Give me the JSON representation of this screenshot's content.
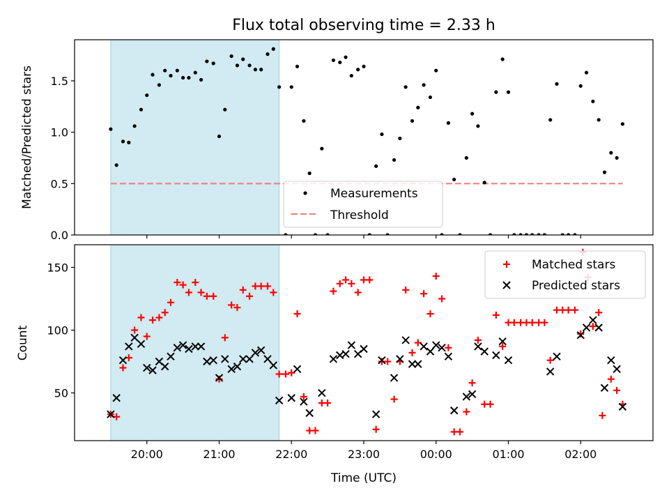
{
  "title": "Flux total observing time = 2.33 h",
  "shading": {
    "start_hours": 19.5,
    "end_hours": 21.83,
    "color": "#add8e6"
  },
  "chart_data": [
    {
      "type": "scatter",
      "title": "Flux total observing time = 2.33 h",
      "xlabel": "",
      "ylabel": "Matched/Predicted stars",
      "ylim": [
        0,
        1.9
      ],
      "yticks": [
        "0.0",
        "0.5",
        "1.0",
        "1.5"
      ],
      "ytick_values": [
        0,
        0.5,
        1.0,
        1.5
      ],
      "legend_position": "lower-center",
      "threshold": {
        "name": "Threshold",
        "y": 0.5,
        "x_range": [
          19.5,
          26.58
        ],
        "color": "#f08080"
      },
      "series": [
        {
          "name": "Measurements",
          "color": "#000000",
          "points": [
            [
              19.5,
              1.03
            ],
            [
              19.58,
              0.68
            ],
            [
              19.67,
              0.91
            ],
            [
              19.75,
              0.9
            ],
            [
              19.83,
              1.06
            ],
            [
              19.92,
              1.22
            ],
            [
              20.0,
              1.36
            ],
            [
              20.08,
              1.56
            ],
            [
              20.17,
              1.46
            ],
            [
              20.25,
              1.6
            ],
            [
              20.33,
              1.55
            ],
            [
              20.42,
              1.6
            ],
            [
              20.5,
              1.53
            ],
            [
              20.58,
              1.53
            ],
            [
              20.67,
              1.58
            ],
            [
              20.75,
              1.51
            ],
            [
              20.83,
              1.69
            ],
            [
              20.92,
              1.67
            ],
            [
              21.0,
              0.96
            ],
            [
              21.08,
              1.22
            ],
            [
              21.17,
              1.74
            ],
            [
              21.25,
              1.65
            ],
            [
              21.33,
              1.71
            ],
            [
              21.42,
              1.65
            ],
            [
              21.5,
              1.61
            ],
            [
              21.58,
              1.61
            ],
            [
              21.67,
              1.76
            ],
            [
              21.75,
              1.81
            ],
            [
              21.83,
              1.44
            ],
            [
              21.92,
              0.0
            ],
            [
              22.0,
              1.44
            ],
            [
              22.08,
              1.64
            ],
            [
              22.17,
              1.11
            ],
            [
              22.25,
              0.6
            ],
            [
              22.33,
              0.0
            ],
            [
              22.42,
              0.84
            ],
            [
              22.5,
              0.0
            ],
            [
              22.58,
              1.7
            ],
            [
              22.67,
              1.68
            ],
            [
              22.75,
              1.73
            ],
            [
              22.83,
              1.55
            ],
            [
              22.92,
              1.61
            ],
            [
              23.0,
              1.64
            ],
            [
              23.08,
              0.0
            ],
            [
              23.17,
              0.67
            ],
            [
              23.25,
              0.98
            ],
            [
              23.33,
              0.0
            ],
            [
              23.42,
              0.73
            ],
            [
              23.5,
              0.94
            ],
            [
              23.58,
              1.44
            ],
            [
              23.67,
              1.11
            ],
            [
              23.75,
              1.24
            ],
            [
              23.83,
              1.46
            ],
            [
              23.92,
              1.34
            ],
            [
              24.0,
              1.6
            ],
            [
              24.08,
              0.0
            ],
            [
              24.17,
              1.09
            ],
            [
              24.25,
              0.54
            ],
            [
              24.33,
              0.0
            ],
            [
              24.42,
              0.75
            ],
            [
              24.5,
              1.18
            ],
            [
              24.58,
              1.06
            ],
            [
              24.67,
              0.51
            ],
            [
              24.75,
              0.0
            ],
            [
              24.83,
              1.39
            ],
            [
              24.92,
              1.71
            ],
            [
              25.0,
              1.39
            ],
            [
              25.08,
              0.0
            ],
            [
              25.17,
              0.0
            ],
            [
              25.25,
              0.0
            ],
            [
              25.33,
              0.0
            ],
            [
              25.42,
              0.0
            ],
            [
              25.5,
              0.0
            ],
            [
              25.58,
              1.12
            ],
            [
              25.67,
              1.47
            ],
            [
              25.75,
              0.0
            ],
            [
              25.83,
              0.0
            ],
            [
              25.92,
              0.0
            ],
            [
              26.0,
              1.45
            ],
            [
              26.08,
              1.58
            ],
            [
              26.17,
              1.3
            ],
            [
              26.25,
              1.12
            ],
            [
              26.33,
              0.61
            ],
            [
              26.42,
              0.8
            ],
            [
              26.5,
              0.75
            ],
            [
              26.58,
              1.08
            ]
          ]
        }
      ]
    },
    {
      "type": "scatter",
      "xlabel": "Time (UTC)",
      "ylabel": "Count",
      "ylim": [
        12,
        168
      ],
      "yticks": [
        "50",
        "100",
        "150"
      ],
      "ytick_values": [
        50,
        100,
        150
      ],
      "xlim": [
        19.0,
        27.0
      ],
      "xticks": [
        "20:00",
        "21:00",
        "22:00",
        "23:00",
        "00:00",
        "01:00",
        "02:00"
      ],
      "xtick_values": [
        20,
        21,
        22,
        23,
        24,
        25,
        26
      ],
      "legend_position": "upper-right",
      "series": [
        {
          "name": "Matched stars",
          "marker": "plus",
          "color": "#ff0000",
          "points": [
            [
              19.5,
              33
            ],
            [
              19.58,
              31
            ],
            [
              19.67,
              70
            ],
            [
              19.75,
              78
            ],
            [
              19.83,
              100
            ],
            [
              19.92,
              110
            ],
            [
              20.0,
              95
            ],
            [
              20.08,
              108
            ],
            [
              20.17,
              110
            ],
            [
              20.25,
              114
            ],
            [
              20.33,
              122
            ],
            [
              20.42,
              138
            ],
            [
              20.5,
              136
            ],
            [
              20.58,
              130
            ],
            [
              20.67,
              138
            ],
            [
              20.75,
              130
            ],
            [
              20.83,
              127
            ],
            [
              20.92,
              127
            ],
            [
              21.0,
              61
            ],
            [
              21.08,
              94
            ],
            [
              21.17,
              120
            ],
            [
              21.25,
              118
            ],
            [
              21.33,
              132
            ],
            [
              21.42,
              127
            ],
            [
              21.5,
              135
            ],
            [
              21.58,
              135
            ],
            [
              21.67,
              135
            ],
            [
              21.75,
              130
            ],
            [
              21.83,
              65
            ],
            [
              21.92,
              65
            ],
            [
              22.0,
              66
            ],
            [
              22.08,
              113
            ],
            [
              22.17,
              47
            ],
            [
              22.25,
              20
            ],
            [
              22.33,
              20
            ],
            [
              22.42,
              42
            ],
            [
              22.5,
              42
            ],
            [
              22.58,
              131
            ],
            [
              22.67,
              137
            ],
            [
              22.75,
              140
            ],
            [
              22.83,
              137
            ],
            [
              22.92,
              130
            ],
            [
              23.0,
              140
            ],
            [
              23.08,
              140
            ],
            [
              23.17,
              21
            ],
            [
              23.25,
              75
            ],
            [
              23.33,
              75
            ],
            [
              23.42,
              45
            ],
            [
              23.5,
              75
            ],
            [
              23.58,
              132
            ],
            [
              23.67,
              82
            ],
            [
              23.75,
              90
            ],
            [
              23.83,
              129
            ],
            [
              23.92,
              113
            ],
            [
              24.0,
              143
            ],
            [
              24.08,
              125
            ],
            [
              24.17,
              86
            ],
            [
              24.25,
              19
            ],
            [
              24.33,
              19
            ],
            [
              24.42,
              35
            ],
            [
              24.5,
              58
            ],
            [
              24.58,
              92
            ],
            [
              24.67,
              41
            ],
            [
              24.75,
              41
            ],
            [
              24.83,
              112
            ],
            [
              24.92,
              87
            ],
            [
              25.0,
              106
            ],
            [
              25.08,
              106
            ],
            [
              25.17,
              106
            ],
            [
              25.25,
              106
            ],
            [
              25.33,
              106
            ],
            [
              25.42,
              106
            ],
            [
              25.5,
              106
            ],
            [
              25.58,
              76
            ],
            [
              25.67,
              116
            ],
            [
              25.75,
              116
            ],
            [
              25.83,
              116
            ],
            [
              25.92,
              116
            ],
            [
              26.0,
              97
            ],
            [
              26.03,
              162
            ],
            [
              26.1,
              142
            ],
            [
              26.17,
              103
            ],
            [
              26.25,
              114
            ],
            [
              26.3,
              32
            ],
            [
              26.42,
              61
            ],
            [
              26.5,
              52
            ],
            [
              26.58,
              41
            ]
          ]
        },
        {
          "name": "Predicted stars",
          "marker": "x",
          "color": "#000000",
          "points": [
            [
              19.5,
              33
            ],
            [
              19.58,
              46
            ],
            [
              19.67,
              76
            ],
            [
              19.75,
              87
            ],
            [
              19.83,
              94
            ],
            [
              19.92,
              89
            ],
            [
              20.0,
              70
            ],
            [
              20.08,
              68
            ],
            [
              20.17,
              75
            ],
            [
              20.25,
              71
            ],
            [
              20.33,
              79
            ],
            [
              20.42,
              86
            ],
            [
              20.5,
              88
            ],
            [
              20.58,
              85
            ],
            [
              20.67,
              87
            ],
            [
              20.75,
              87
            ],
            [
              20.83,
              75
            ],
            [
              20.92,
              76
            ],
            [
              21.0,
              62
            ],
            [
              21.08,
              77
            ],
            [
              21.17,
              69
            ],
            [
              21.25,
              71
            ],
            [
              21.33,
              77
            ],
            [
              21.42,
              77
            ],
            [
              21.5,
              82
            ],
            [
              21.58,
              84
            ],
            [
              21.67,
              77
            ],
            [
              21.75,
              72
            ],
            [
              21.83,
              44
            ],
            [
              22.0,
              46
            ],
            [
              22.08,
              69
            ],
            [
              22.17,
              43
            ],
            [
              22.25,
              34
            ],
            [
              22.42,
              50
            ],
            [
              22.58,
              77
            ],
            [
              22.67,
              80
            ],
            [
              22.75,
              81
            ],
            [
              22.83,
              88
            ],
            [
              22.92,
              81
            ],
            [
              23.0,
              85
            ],
            [
              23.17,
              33
            ],
            [
              23.25,
              76
            ],
            [
              23.42,
              62
            ],
            [
              23.5,
              77
            ],
            [
              23.58,
              92
            ],
            [
              23.67,
              73
            ],
            [
              23.75,
              73
            ],
            [
              23.83,
              87
            ],
            [
              23.92,
              83
            ],
            [
              24.0,
              88
            ],
            [
              24.08,
              86
            ],
            [
              24.17,
              79
            ],
            [
              24.25,
              36
            ],
            [
              24.42,
              47
            ],
            [
              24.5,
              49
            ],
            [
              24.58,
              87
            ],
            [
              24.67,
              83
            ],
            [
              24.83,
              80
            ],
            [
              24.92,
              91
            ],
            [
              25.0,
              76
            ],
            [
              25.58,
              67
            ],
            [
              25.67,
              79
            ],
            [
              26.0,
              96
            ],
            [
              26.08,
              102
            ],
            [
              26.17,
              108
            ],
            [
              26.25,
              102
            ],
            [
              26.33,
              54
            ],
            [
              26.42,
              76
            ],
            [
              26.5,
              69
            ],
            [
              26.58,
              39
            ]
          ]
        }
      ]
    }
  ]
}
